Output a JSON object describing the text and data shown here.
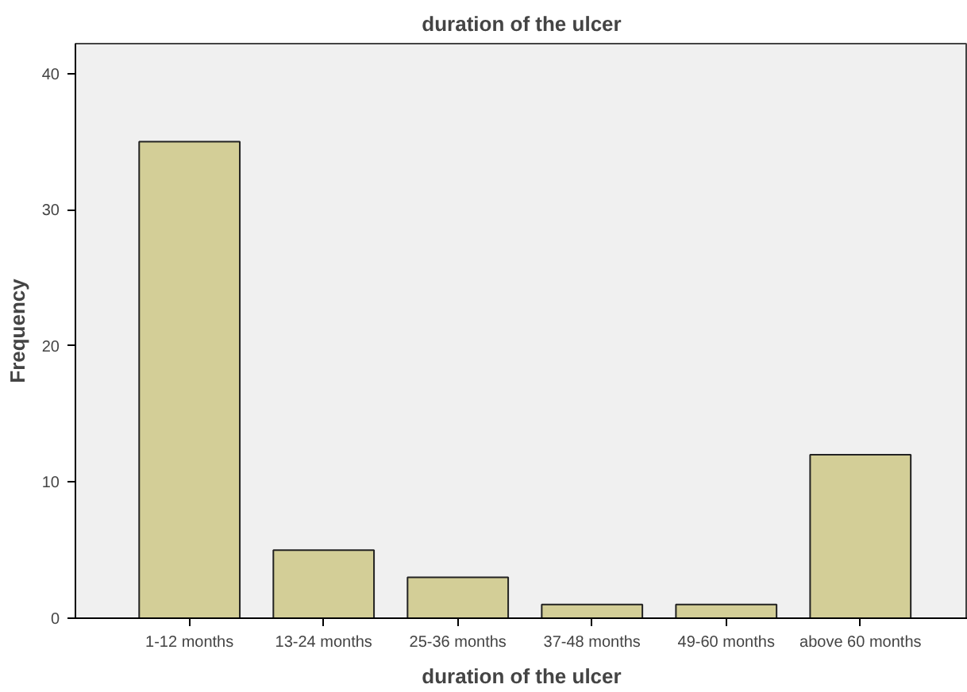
{
  "chart_data": {
    "type": "bar",
    "title": "duration of the ulcer",
    "xlabel": "duration of the ulcer",
    "ylabel": "Frequency",
    "categories": [
      "1-12 months",
      "13-24 months",
      "25-36 months",
      "37-48 months",
      "49-60 months",
      "above 60 months"
    ],
    "values": [
      35,
      5,
      3,
      1,
      1,
      12
    ],
    "color": "#d3ce97",
    "ylim": [
      0,
      42.2
    ],
    "yticks": [
      0,
      10,
      20,
      30,
      40
    ],
    "grid": false
  }
}
